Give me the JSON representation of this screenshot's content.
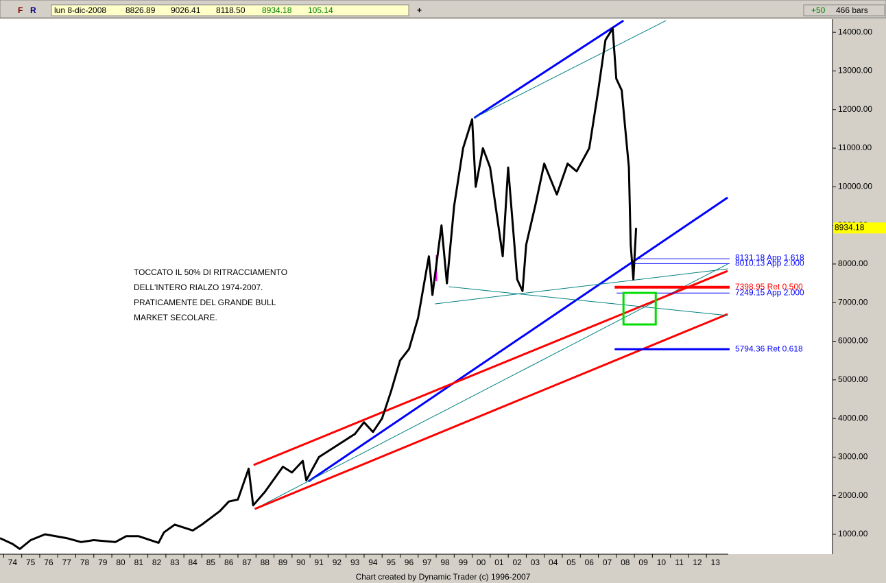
{
  "toolbar": {
    "f": "F",
    "r": "R",
    "date": "lun 8-dic-2008",
    "open": "8826.89",
    "high": "9026.41",
    "low": "8118.50",
    "close": "8934.18",
    "change": "105.14",
    "plus": "+50",
    "bars": "466 bars"
  },
  "chart_data": {
    "type": "line",
    "annotation": [
      "TOCCATO IL 50% DI RITRACCIAMENTO",
      "DELL'INTERO RIALZO 1974-2007.",
      "PRATICAMENTE DEL GRANDE BULL",
      "MARKET SECOLARE."
    ],
    "footer": "Chart created by Dynamic Trader  (c) 1996-2007",
    "xlim": [
      1973.8,
      2020
    ],
    "ylim": [
      485,
      14340
    ],
    "xticks": [
      {
        "value": 1974.5,
        "label": "74"
      },
      {
        "value": 1975.5,
        "label": "75"
      },
      {
        "value": 1976.5,
        "label": "76"
      },
      {
        "value": 1977.5,
        "label": "77"
      },
      {
        "value": 1978.5,
        "label": "78"
      },
      {
        "value": 1979.5,
        "label": "79"
      },
      {
        "value": 1980.5,
        "label": "80"
      },
      {
        "value": 1981.5,
        "label": "81"
      },
      {
        "value": 1982.5,
        "label": "82"
      },
      {
        "value": 1983.5,
        "label": "83"
      },
      {
        "value": 1984.5,
        "label": "84"
      },
      {
        "value": 1985.5,
        "label": "85"
      },
      {
        "value": 1986.5,
        "label": "86"
      },
      {
        "value": 1987.5,
        "label": "87"
      },
      {
        "value": 1988.5,
        "label": "88"
      },
      {
        "value": 1989.5,
        "label": "89"
      },
      {
        "value": 1990.5,
        "label": "90"
      },
      {
        "value": 1991.5,
        "label": "91"
      },
      {
        "value": 1992.5,
        "label": "92"
      },
      {
        "value": 1993.5,
        "label": "93"
      },
      {
        "value": 1994.5,
        "label": "94"
      },
      {
        "value": 1995.5,
        "label": "95"
      },
      {
        "value": 1996.5,
        "label": "96"
      },
      {
        "value": 1997.5,
        "label": "97"
      },
      {
        "value": 1998.5,
        "label": "98"
      },
      {
        "value": 1999.5,
        "label": "99"
      },
      {
        "value": 2000.5,
        "label": "00"
      },
      {
        "value": 2001.5,
        "label": "01"
      },
      {
        "value": 2002.5,
        "label": "02"
      },
      {
        "value": 2003.5,
        "label": "03"
      },
      {
        "value": 2004.5,
        "label": "04"
      },
      {
        "value": 2005.5,
        "label": "05"
      },
      {
        "value": 2006.5,
        "label": "06"
      },
      {
        "value": 2007.5,
        "label": "07"
      },
      {
        "value": 2008.5,
        "label": "08"
      },
      {
        "value": 2009.5,
        "label": "09"
      },
      {
        "value": 2010.5,
        "label": "10"
      },
      {
        "value": 2011.5,
        "label": "11"
      },
      {
        "value": 2012.5,
        "label": "12"
      },
      {
        "value": 2013.5,
        "label": "13"
      }
    ],
    "yticks": [
      {
        "value": 1000,
        "label": "1000.00"
      },
      {
        "value": 2000,
        "label": "2000.00"
      },
      {
        "value": 3000,
        "label": "3000.00"
      },
      {
        "value": 4000,
        "label": "4000.00"
      },
      {
        "value": 5000,
        "label": "5000.00"
      },
      {
        "value": 6000,
        "label": "6000.00"
      },
      {
        "value": 7000,
        "label": "7000.00"
      },
      {
        "value": 8000,
        "label": "8000.00"
      },
      {
        "value": 9000,
        "label": "9000.00"
      },
      {
        "value": 10000,
        "label": "10000.00"
      },
      {
        "value": 11000,
        "label": "11000.00"
      },
      {
        "value": 12000,
        "label": "12000.00"
      },
      {
        "value": 13000,
        "label": "13000.00"
      },
      {
        "value": 14000,
        "label": "14000.00"
      }
    ],
    "series": [
      {
        "color": "#000000",
        "x": [
          1973.8,
          1974.5,
          1974.9,
          1975.5,
          1976.3,
          1977.5,
          1978.3,
          1979.0,
          1980.2,
          1980.8,
          1981.5,
          1982.6,
          1982.9,
          1983.5,
          1984.5,
          1985.0,
          1986.0,
          1986.5,
          1987.0,
          1987.6,
          1987.85,
          1988.5,
          1989.5,
          1990.0,
          1990.6,
          1990.8,
          1991.5,
          1992.5,
          1993.5,
          1994.0,
          1994.5,
          1995.0,
          1995.5,
          1996.0,
          1996.5,
          1997.0,
          1997.6,
          1997.8,
          1998.3,
          1998.6,
          1999.0,
          1999.5,
          2000.0,
          2000.2,
          2000.6,
          2001.0,
          2001.7,
          2002.0,
          2002.5,
          2002.8,
          2003.0,
          2003.5,
          2004.0,
          2004.7,
          2005.3,
          2005.8,
          2006.5,
          2007.0,
          2007.4,
          2007.8,
          2008.0,
          2008.3,
          2008.5,
          2008.7,
          2008.8,
          2008.95,
          2009.1
        ],
        "values": [
          900,
          750,
          620,
          850,
          1000,
          900,
          800,
          850,
          800,
          950,
          950,
          780,
          1050,
          1250,
          1100,
          1250,
          1600,
          1850,
          1900,
          2700,
          1750,
          2100,
          2750,
          2600,
          2900,
          2400,
          3000,
          3300,
          3600,
          3900,
          3650,
          4000,
          4700,
          5500,
          5800,
          6600,
          8200,
          7200,
          9000,
          7500,
          9500,
          11000,
          11750,
          10000,
          11000,
          10500,
          8200,
          10500,
          7600,
          7300,
          8500,
          9500,
          10600,
          9800,
          10600,
          10400,
          11000,
          12500,
          13800,
          14100,
          12800,
          12500,
          11500,
          10500,
          8500,
          7600,
          8934
        ]
      }
    ],
    "last_price": 8934.18,
    "lines": [
      {
        "color": "#0000ff",
        "width": 3,
        "x": [
          2000.11,
          2008.4
        ],
        "values": [
          11782,
          14304
        ]
      },
      {
        "color": "#008080",
        "width": 1,
        "x": [
          2000.11,
          2010.76
        ],
        "values": [
          11782,
          14304
        ]
      },
      {
        "color": "#0000ff",
        "width": 3,
        "x": [
          1990.91,
          2014.18
        ],
        "values": [
          2368,
          9721
        ]
      },
      {
        "color": "#008080",
        "width": 1,
        "x": [
          1987.94,
          2014.18
        ],
        "values": [
          1657,
          7998
        ]
      },
      {
        "color": "#ff0000",
        "width": 3,
        "x": [
          1987.87,
          2014.18
        ],
        "values": [
          2794,
          7821
        ]
      },
      {
        "color": "#ff0000",
        "width": 3,
        "x": [
          1987.94,
          2014.18
        ],
        "values": [
          1657,
          6702
        ]
      },
      {
        "color": "#008080",
        "width": 1,
        "x": [
          1997.94,
          2014.18
        ],
        "values": [
          6968,
          7874
        ]
      },
      {
        "color": "#008080",
        "width": 1,
        "x": [
          1998.71,
          2014.18
        ],
        "values": [
          7412,
          6666
        ]
      },
      {
        "color": "#ff00ff",
        "width": 2,
        "x": [
          1998.02,
          1998.02
        ],
        "values": [
          8229,
          7554
        ]
      }
    ],
    "levels": [
      {
        "value": 8131.18,
        "label": "8131.18 App 1.618",
        "color": "#0000ff",
        "width": 1,
        "x": [
          2008.97,
          2014.29
        ]
      },
      {
        "value": 8010.13,
        "label": "8010.13 App 2.000",
        "color": "#0000ff",
        "width": 1,
        "x": [
          2008.97,
          2014.29
        ]
      },
      {
        "value": 7398.95,
        "label": "7398.95 Ret 0.500",
        "color": "#ff0000",
        "width": 4,
        "x": [
          2007.91,
          2014.29
        ]
      },
      {
        "value": 7249.15,
        "label": "7249.15 App 2.000",
        "color": "#0000ff",
        "width": 1,
        "x": [
          2008.02,
          2014.29
        ]
      },
      {
        "value": 5794.36,
        "label": "5794.36 Ret 0.618",
        "color": "#0000ff",
        "width": 3,
        "x": [
          2007.91,
          2014.29
        ]
      }
    ],
    "box": {
      "color": "#00dd00",
      "x": [
        2008.4,
        2010.19
      ],
      "values": [
        7252,
        6435
      ]
    }
  }
}
